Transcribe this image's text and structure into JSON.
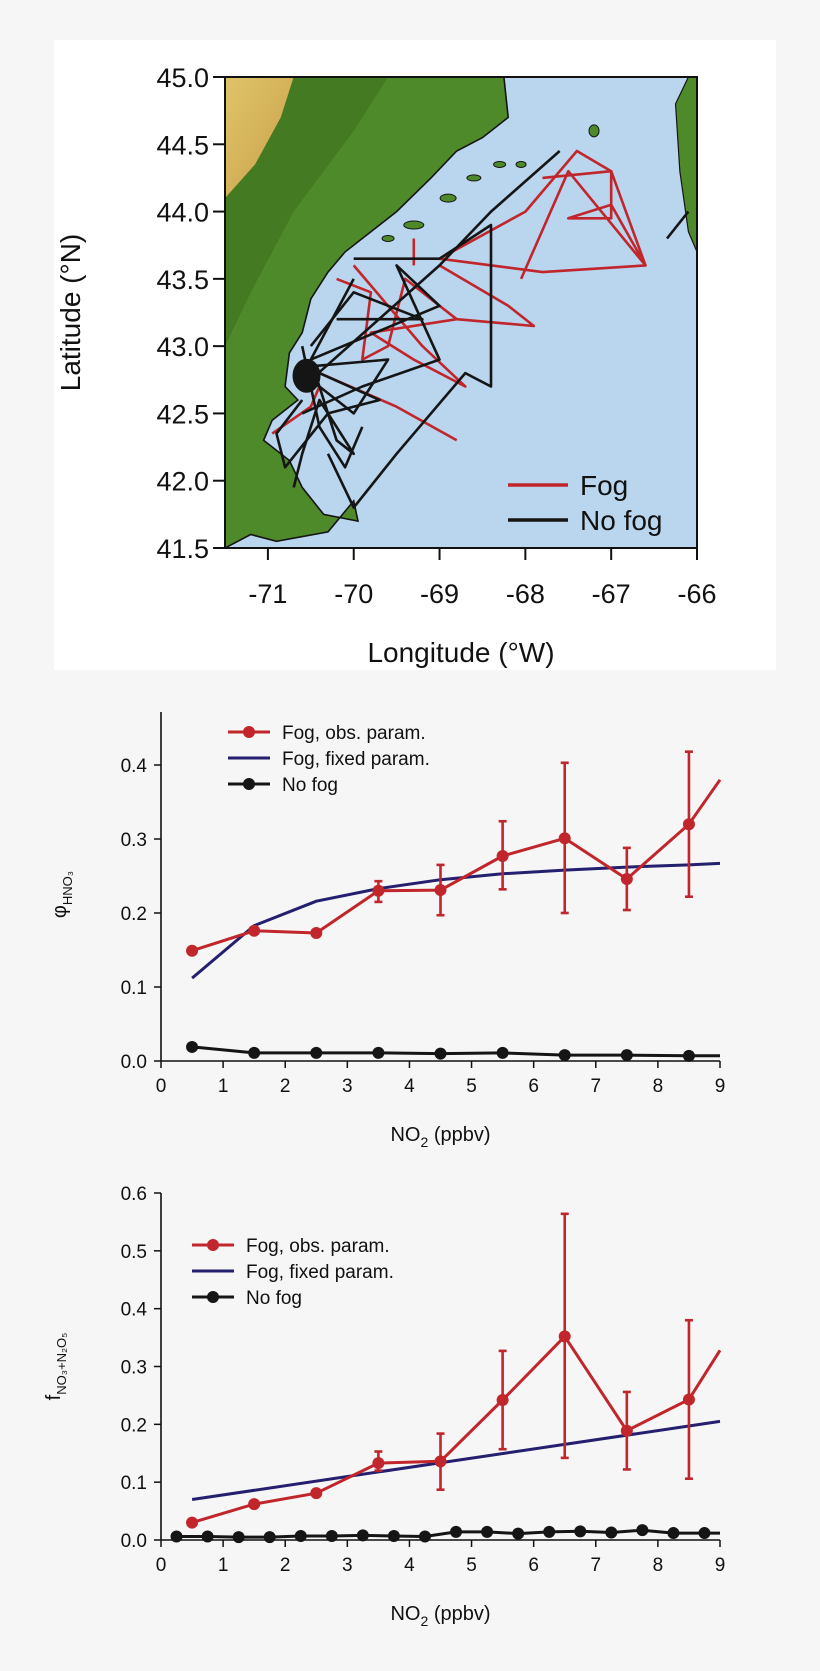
{
  "colors": {
    "fog_red": "#c0262b",
    "nofog_black": "#151515",
    "fixed_navy": "#241f6e",
    "ocean": "#bad5ee",
    "land_green": "#4f8a2a",
    "land_dark": "#3b6d1c",
    "highland_tan": "#c9a04a",
    "highland_yellow": "#dfc46a",
    "axis": "#111111",
    "panel_bg": "#f6f6f6",
    "map_frame_bg": "#ffffff"
  },
  "chart_data": [
    {
      "type": "scatter",
      "id": "map",
      "xlabel": "Longitude (°W)",
      "ylabel": "Latitude (°N)",
      "xlim": [
        -71.5,
        -66
      ],
      "ylim": [
        41.5,
        45.0
      ],
      "x_ticks": [
        -71,
        -70,
        -69,
        -68,
        -67,
        -66
      ],
      "x_tick_labels": [
        "-71",
        "-70",
        "-69",
        "-68",
        "-67",
        "-66"
      ],
      "y_ticks": [
        41.5,
        42.0,
        42.5,
        43.0,
        43.5,
        44.0,
        44.5,
        45.0
      ],
      "y_tick_labels": [
        "41.5",
        "42.0",
        "42.5",
        "43.0",
        "43.5",
        "44.0",
        "44.5",
        "45.0"
      ],
      "legend": "bottom-right",
      "series": [
        {
          "name": "Fog",
          "color_key": "fog_red",
          "tracks": [
            [
              [
                -69.0,
                43.65
              ],
              [
                -68.0,
                44.0
              ],
              [
                -67.4,
                44.45
              ],
              [
                -67.0,
                44.3
              ],
              [
                -66.6,
                43.6
              ],
              [
                -67.8,
                43.55
              ],
              [
                -69.0,
                43.65
              ]
            ],
            [
              [
                -67.8,
                44.25
              ],
              [
                -67.0,
                44.3
              ],
              [
                -67.0,
                43.95
              ],
              [
                -67.5,
                43.95
              ],
              [
                -67.0,
                44.05
              ],
              [
                -66.6,
                43.6
              ],
              [
                -67.5,
                44.3
              ],
              [
                -68.05,
                43.5
              ]
            ],
            [
              [
                -69.0,
                43.6
              ],
              [
                -68.2,
                43.3
              ],
              [
                -67.9,
                43.15
              ],
              [
                -68.8,
                43.2
              ],
              [
                -69.4,
                43.5
              ],
              [
                -69.6,
                43.0
              ],
              [
                -69.9,
                42.9
              ],
              [
                -69.8,
                43.4
              ],
              [
                -70.2,
                43.5
              ]
            ],
            [
              [
                -70.0,
                43.6
              ],
              [
                -69.2,
                43.0
              ],
              [
                -68.7,
                42.7
              ],
              [
                -69.3,
                42.9
              ],
              [
                -69.8,
                43.1
              ],
              [
                -68.8,
                43.2
              ]
            ],
            [
              [
                -70.4,
                42.8
              ],
              [
                -69.5,
                42.55
              ],
              [
                -68.8,
                42.3
              ]
            ],
            [
              [
                -70.4,
                42.7
              ],
              [
                -70.5,
                42.55
              ],
              [
                -70.95,
                42.35
              ]
            ],
            [
              [
                -69.3,
                43.8
              ],
              [
                -69.3,
                43.6
              ]
            ]
          ]
        },
        {
          "name": "No fog",
          "color_key": "nofog_black",
          "tracks": [
            [
              [
                -70.5,
                42.75
              ],
              [
                -69.0,
                43.6
              ],
              [
                -68.4,
                44.0
              ],
              [
                -67.6,
                44.45
              ]
            ],
            [
              [
                -70.0,
                43.65
              ],
              [
                -69.0,
                43.65
              ],
              [
                -68.4,
                43.9
              ],
              [
                -68.4,
                43.2
              ],
              [
                -68.4,
                42.7
              ],
              [
                -68.7,
                42.8
              ],
              [
                -69.5,
                42.2
              ],
              [
                -70.0,
                41.8
              ],
              [
                -70.3,
                42.2
              ]
            ],
            [
              [
                -70.0,
                43.5
              ],
              [
                -70.5,
                42.9
              ],
              [
                -69.0,
                43.3
              ],
              [
                -69.5,
                43.6
              ],
              [
                -69.0,
                42.9
              ],
              [
                -69.9,
                42.7
              ],
              [
                -70.6,
                42.5
              ]
            ],
            [
              [
                -70.5,
                42.9
              ],
              [
                -70.2,
                42.3
              ],
              [
                -70.0,
                42.2
              ],
              [
                -70.4,
                42.6
              ],
              [
                -70.6,
                42.2
              ],
              [
                -70.7,
                41.95
              ]
            ],
            [
              [
                -70.6,
                42.6
              ],
              [
                -70.9,
                42.35
              ],
              [
                -70.8,
                42.1
              ],
              [
                -70.3,
                42.5
              ],
              [
                -69.7,
                42.6
              ],
              [
                -70.4,
                42.8
              ]
            ],
            [
              [
                -70.2,
                43.2
              ],
              [
                -69.2,
                43.2
              ],
              [
                -70.0,
                43.4
              ],
              [
                -70.5,
                43.0
              ]
            ],
            [
              [
                -70.6,
                43.0
              ],
              [
                -70.4,
                42.4
              ],
              [
                -70.1,
                42.1
              ],
              [
                -69.9,
                42.4
              ]
            ],
            [
              [
                -70.5,
                42.85
              ],
              [
                -69.6,
                42.9
              ],
              [
                -70.0,
                42.5
              ],
              [
                -70.5,
                42.75
              ]
            ],
            [
              [
                -66.35,
                43.8
              ],
              [
                -66.1,
                44.0
              ]
            ]
          ]
        }
      ]
    },
    {
      "type": "line",
      "id": "phi",
      "ylabel_symbol": "φ",
      "ylabel_subscript": "HNO₃",
      "xlabel_main": "NO",
      "xlabel_sub": "2",
      "xlabel_tail": " (ppbv)",
      "xlim": [
        0,
        9
      ],
      "ylim": [
        0,
        0.45
      ],
      "x_ticks": [
        0,
        1,
        2,
        3,
        4,
        5,
        6,
        7,
        8,
        9
      ],
      "x_tick_labels": [
        "0",
        "1",
        "2",
        "3",
        "4",
        "5",
        "6",
        "7",
        "8",
        "9"
      ],
      "y_ticks": [
        0.0,
        0.1,
        0.2,
        0.3,
        0.4
      ],
      "y_tick_labels": [
        "0.0",
        "0.1",
        "0.2",
        "0.3",
        "0.4"
      ],
      "legend": "top-left",
      "series": [
        {
          "name": "Fog, obs. param.",
          "color_key": "fog_red",
          "markers": true,
          "x": [
            0.5,
            1.5,
            2.5,
            3.5,
            4.5,
            5.5,
            6.5,
            7.5,
            8.5
          ],
          "y": [
            0.149,
            0.176,
            0.173,
            0.23,
            0.231,
            0.277,
            0.301,
            0.246,
            0.32
          ],
          "err_low": [
            null,
            null,
            null,
            0.215,
            0.197,
            0.232,
            0.2,
            0.204,
            0.222
          ],
          "err_high": [
            null,
            null,
            null,
            0.243,
            0.265,
            0.324,
            0.403,
            0.288,
            0.418
          ],
          "tail": [
            9.0,
            0.38
          ]
        },
        {
          "name": "Fog, fixed param.",
          "color_key": "fixed_navy",
          "markers": false,
          "x": [
            0.5,
            1.5,
            2.5,
            3.5,
            4.5,
            5.5,
            6.5,
            7.5,
            8.5,
            9.0
          ],
          "y": [
            0.112,
            0.183,
            0.216,
            0.233,
            0.245,
            0.253,
            0.258,
            0.262,
            0.265,
            0.267
          ]
        },
        {
          "name": "No fog",
          "color_key": "nofog_black",
          "markers": true,
          "x": [
            0.5,
            1.5,
            2.5,
            3.5,
            4.5,
            5.5,
            6.5,
            7.5,
            8.5
          ],
          "y": [
            0.019,
            0.011,
            0.011,
            0.011,
            0.01,
            0.011,
            0.008,
            0.008,
            0.007
          ],
          "tail": [
            9.0,
            0.007
          ]
        }
      ]
    },
    {
      "type": "line",
      "id": "f",
      "ylabel_symbol": "f",
      "ylabel_subscript": "NO₃+N₂O₅",
      "xlabel_main": "NO",
      "xlabel_sub": "2",
      "xlabel_tail": " (ppbv)",
      "xlim": [
        0,
        9
      ],
      "ylim": [
        0,
        0.6
      ],
      "x_ticks": [
        0,
        1,
        2,
        3,
        4,
        5,
        6,
        7,
        8,
        9
      ],
      "x_tick_labels": [
        "0",
        "1",
        "2",
        "3",
        "4",
        "5",
        "6",
        "7",
        "8",
        "9"
      ],
      "y_ticks": [
        0.0,
        0.1,
        0.2,
        0.3,
        0.4,
        0.5,
        0.6
      ],
      "y_tick_labels": [
        "0.0",
        "0.1",
        "0.2",
        "0.3",
        "0.4",
        "0.5",
        "0.6"
      ],
      "legend": "top-left",
      "series": [
        {
          "name": "Fog, obs. param.",
          "color_key": "fog_red",
          "markers": true,
          "x": [
            0.5,
            1.5,
            2.5,
            3.5,
            4.5,
            5.5,
            6.5,
            7.5,
            8.5
          ],
          "y": [
            0.03,
            0.062,
            0.081,
            0.133,
            0.136,
            0.242,
            0.352,
            0.189,
            0.243
          ],
          "err_low": [
            null,
            null,
            null,
            0.12,
            0.087,
            0.157,
            0.142,
            0.122,
            0.106
          ],
          "err_high": [
            null,
            null,
            null,
            0.153,
            0.184,
            0.327,
            0.564,
            0.256,
            0.38
          ],
          "tail": [
            9.0,
            0.328
          ]
        },
        {
          "name": "Fog, fixed param.",
          "color_key": "fixed_navy",
          "markers": false,
          "x": [
            0.5,
            9.0
          ],
          "y": [
            0.07,
            0.205
          ]
        },
        {
          "name": "No fog",
          "color_key": "nofog_black",
          "markers": true,
          "x": [
            0.25,
            0.75,
            1.25,
            1.75,
            2.25,
            2.75,
            3.25,
            3.75,
            4.25,
            4.75,
            5.25,
            5.75,
            6.25,
            6.75,
            7.25,
            7.75,
            8.25,
            8.75
          ],
          "y": [
            0.006,
            0.006,
            0.005,
            0.005,
            0.007,
            0.007,
            0.008,
            0.007,
            0.006,
            0.014,
            0.014,
            0.011,
            0.014,
            0.015,
            0.013,
            0.017,
            0.012,
            0.012
          ],
          "tail": [
            9.0,
            0.012
          ]
        }
      ]
    }
  ]
}
